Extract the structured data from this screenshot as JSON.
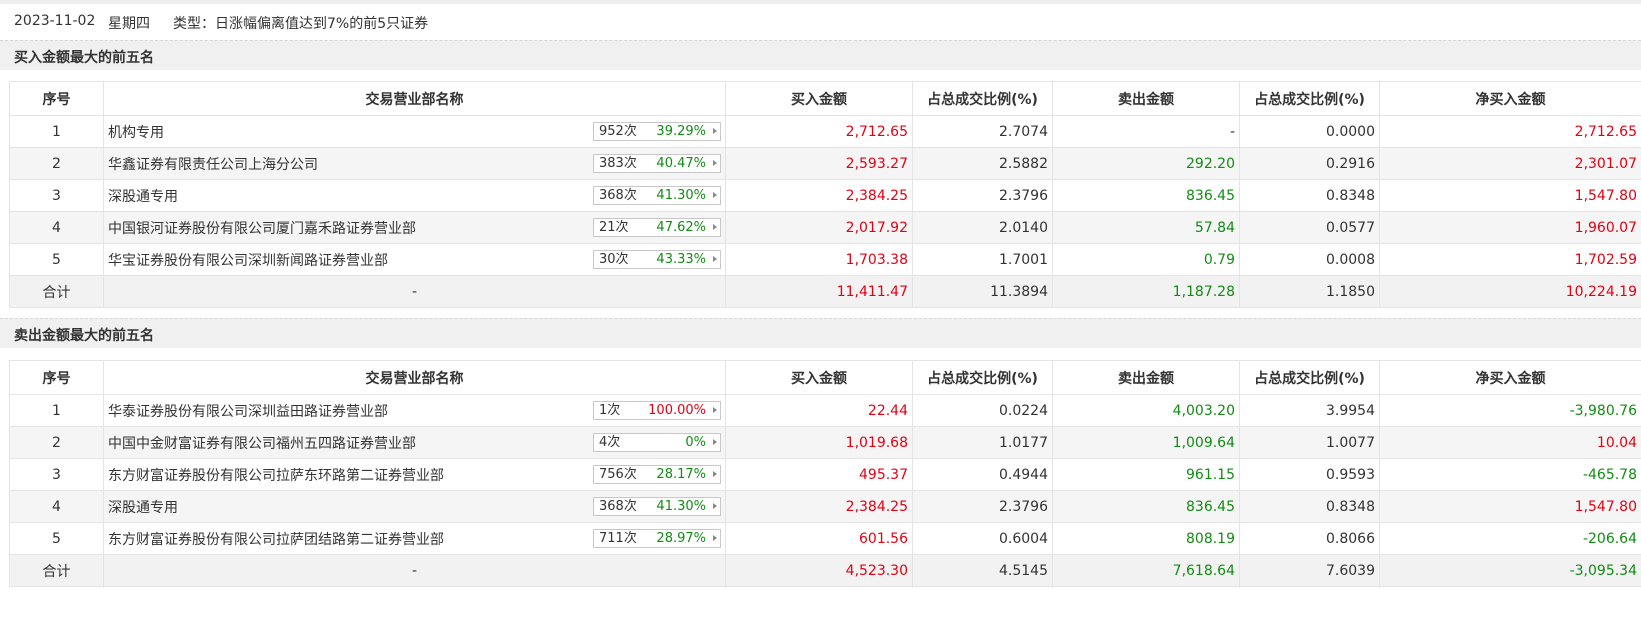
{
  "header": {
    "date": "2023-11-02",
    "weekday": "星期四",
    "type_text": "类型：日涨幅偏离值达到7%的前5只证券"
  },
  "colors": {
    "red": "#e60012",
    "green": "#138c13"
  },
  "columns": [
    "序号",
    "交易营业部名称",
    "买入金额",
    "占总成交比例(%)",
    "卖出金额",
    "占总成交比例(%)",
    "净买入金额"
  ],
  "buy_section": {
    "title": "买入金额最大的前五名",
    "rows": [
      {
        "no": "1",
        "name": "机构专用",
        "count": "952次",
        "pct": "39.29%",
        "pct_color": "green",
        "buy": "2,712.65",
        "buy_ratio": "2.7074",
        "sell": "-",
        "sell_ratio": "0.0000",
        "net": "2,712.65",
        "net_color": "red"
      },
      {
        "no": "2",
        "name": "华鑫证券有限责任公司上海分公司",
        "count": "383次",
        "pct": "40.47%",
        "pct_color": "green",
        "buy": "2,593.27",
        "buy_ratio": "2.5882",
        "sell": "292.20",
        "sell_ratio": "0.2916",
        "net": "2,301.07",
        "net_color": "red"
      },
      {
        "no": "3",
        "name": "深股通专用",
        "count": "368次",
        "pct": "41.30%",
        "pct_color": "green",
        "buy": "2,384.25",
        "buy_ratio": "2.3796",
        "sell": "836.45",
        "sell_ratio": "0.8348",
        "net": "1,547.80",
        "net_color": "red"
      },
      {
        "no": "4",
        "name": "中国银河证券股份有限公司厦门嘉禾路证券营业部",
        "count": "21次",
        "pct": "47.62%",
        "pct_color": "green",
        "buy": "2,017.92",
        "buy_ratio": "2.0140",
        "sell": "57.84",
        "sell_ratio": "0.0577",
        "net": "1,960.07",
        "net_color": "red"
      },
      {
        "no": "5",
        "name": "华宝证券股份有限公司深圳新闻路证券营业部",
        "count": "30次",
        "pct": "43.33%",
        "pct_color": "green",
        "buy": "1,703.38",
        "buy_ratio": "1.7001",
        "sell": "0.79",
        "sell_ratio": "0.0008",
        "net": "1,702.59",
        "net_color": "red"
      }
    ],
    "total": {
      "label": "合计",
      "name": "-",
      "buy": "11,411.47",
      "buy_ratio": "11.3894",
      "sell": "1,187.28",
      "sell_ratio": "1.1850",
      "net": "10,224.19",
      "net_color": "red"
    }
  },
  "sell_section": {
    "title": "卖出金额最大的前五名",
    "rows": [
      {
        "no": "1",
        "name": "华泰证券股份有限公司深圳益田路证券营业部",
        "count": "1次",
        "pct": "100.00%",
        "pct_color": "red",
        "buy": "22.44",
        "buy_ratio": "0.0224",
        "sell": "4,003.20",
        "sell_ratio": "3.9954",
        "net": "-3,980.76",
        "net_color": "green"
      },
      {
        "no": "2",
        "name": "中国中金财富证券有限公司福州五四路证券营业部",
        "count": "4次",
        "pct": "0%",
        "pct_color": "green",
        "buy": "1,019.68",
        "buy_ratio": "1.0177",
        "sell": "1,009.64",
        "sell_ratio": "1.0077",
        "net": "10.04",
        "net_color": "red"
      },
      {
        "no": "3",
        "name": "东方财富证券股份有限公司拉萨东环路第二证券营业部",
        "count": "756次",
        "pct": "28.17%",
        "pct_color": "green",
        "buy": "495.37",
        "buy_ratio": "0.4944",
        "sell": "961.15",
        "sell_ratio": "0.9593",
        "net": "-465.78",
        "net_color": "green"
      },
      {
        "no": "4",
        "name": "深股通专用",
        "count": "368次",
        "pct": "41.30%",
        "pct_color": "green",
        "buy": "2,384.25",
        "buy_ratio": "2.3796",
        "sell": "836.45",
        "sell_ratio": "0.8348",
        "net": "1,547.80",
        "net_color": "red"
      },
      {
        "no": "5",
        "name": "东方财富证券股份有限公司拉萨团结路第二证券营业部",
        "count": "711次",
        "pct": "28.97%",
        "pct_color": "green",
        "buy": "601.56",
        "buy_ratio": "0.6004",
        "sell": "808.19",
        "sell_ratio": "0.8066",
        "net": "-206.64",
        "net_color": "green"
      }
    ],
    "total": {
      "label": "合计",
      "name": "-",
      "buy": "4,523.30",
      "buy_ratio": "4.5145",
      "sell": "7,618.64",
      "sell_ratio": "7.6039",
      "net": "-3,095.34",
      "net_color": "green"
    }
  }
}
